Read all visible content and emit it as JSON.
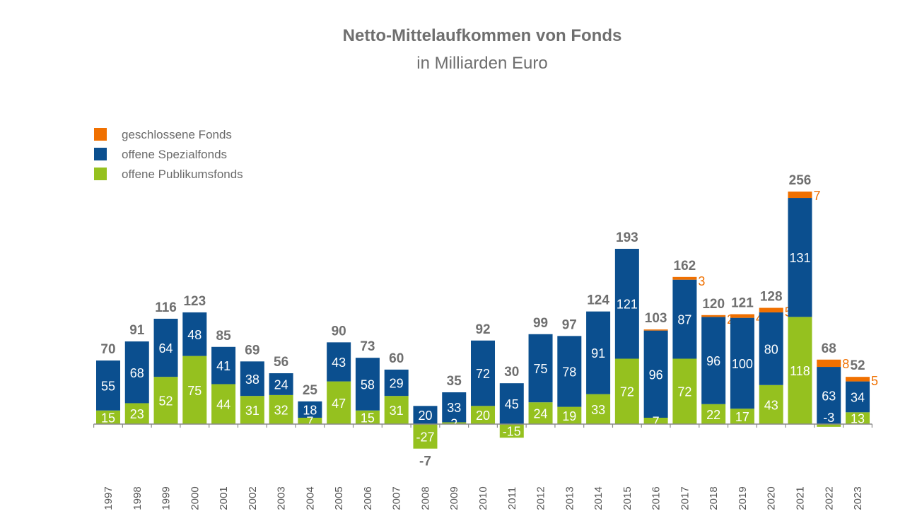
{
  "chart_data": {
    "type": "bar",
    "stacked": true,
    "title": "Netto-Mittelaufkommen von Fonds",
    "subtitle": "in Milliarden Euro",
    "legend_position": "top-left",
    "grid": false,
    "categories": [
      "1997",
      "1998",
      "1999",
      "2000",
      "2001",
      "2002",
      "2003",
      "2004",
      "2005",
      "2006",
      "2007",
      "2008",
      "2009",
      "2010",
      "2011",
      "2012",
      "2013",
      "2014",
      "2015",
      "2016",
      "2017",
      "2018",
      "2019",
      "2020",
      "2021",
      "2022",
      "2023"
    ],
    "series": [
      {
        "name": "offene Publikumsfonds",
        "color": "#95c11f",
        "values": [
          15,
          23,
          52,
          75,
          44,
          31,
          32,
          7,
          47,
          15,
          31,
          -27,
          2,
          20,
          -15,
          24,
          19,
          33,
          72,
          7,
          72,
          22,
          17,
          43,
          118,
          -3,
          13
        ]
      },
      {
        "name": "offene Spezialfonds",
        "color": "#0b4f8f",
        "values": [
          55,
          68,
          64,
          48,
          41,
          38,
          24,
          18,
          43,
          58,
          29,
          20,
          33,
          72,
          45,
          75,
          78,
          91,
          121,
          96,
          87,
          96,
          100,
          80,
          131,
          63,
          34
        ]
      },
      {
        "name": "geschlossene Fonds",
        "color": "#f07000",
        "values": [
          null,
          null,
          null,
          null,
          null,
          null,
          null,
          null,
          null,
          null,
          null,
          null,
          null,
          null,
          null,
          null,
          null,
          null,
          null,
          0,
          3,
          2,
          4,
          5,
          7,
          8,
          5
        ]
      }
    ],
    "totals": [
      70,
      91,
      116,
      123,
      85,
      69,
      56,
      25,
      90,
      73,
      60,
      -7,
      35,
      92,
      30,
      99,
      97,
      124,
      193,
      103,
      162,
      120,
      121,
      128,
      256,
      68,
      52
    ]
  }
}
